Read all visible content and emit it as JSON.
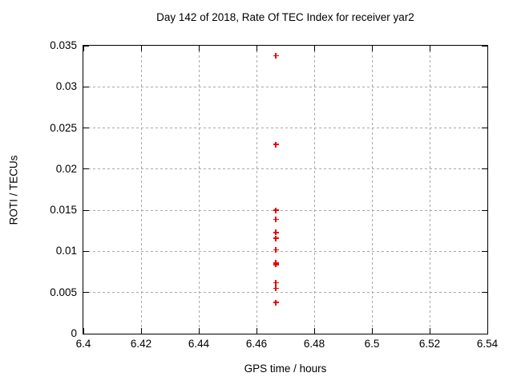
{
  "title": "Day 142 of 2018, Rate Of TEC Index for receiver yar2",
  "chart_data": {
    "type": "scatter",
    "title": "Day 142 of 2018, Rate Of TEC Index for receiver yar2",
    "xlabel": "GPS time / hours",
    "ylabel": "ROTI / TECUs",
    "xlim": [
      6.4,
      6.54
    ],
    "ylim": [
      0,
      0.035
    ],
    "x_tick_values": [
      6.4,
      6.42,
      6.44,
      6.46,
      6.48,
      6.5,
      6.52,
      6.54
    ],
    "x_tick_labels": [
      "6.4",
      "6.42",
      "6.44",
      "6.46",
      "6.48",
      "6.5",
      "6.52",
      "6.54"
    ],
    "y_tick_values": [
      0,
      0.005,
      0.01,
      0.015,
      0.02,
      0.025,
      0.03,
      0.035
    ],
    "y_tick_labels": [
      "0",
      "0.005",
      "0.01",
      "0.015",
      "0.02",
      "0.025",
      "0.03",
      "0.035"
    ],
    "grid": true,
    "legend_position": "none",
    "marker": "plus",
    "marker_color": "#ee0000",
    "series": [
      {
        "name": "ROTI",
        "x": [
          6.4667,
          6.4667,
          6.4667,
          6.4667,
          6.4667,
          6.4667,
          6.4667,
          6.4667,
          6.4667,
          6.4667,
          6.4667,
          6.4667
        ],
        "y": [
          0.0338,
          0.023,
          0.015,
          0.0139,
          0.0123,
          0.0116,
          0.0102,
          0.0086,
          0.0084,
          0.0062,
          0.0055,
          0.0038
        ]
      }
    ]
  }
}
